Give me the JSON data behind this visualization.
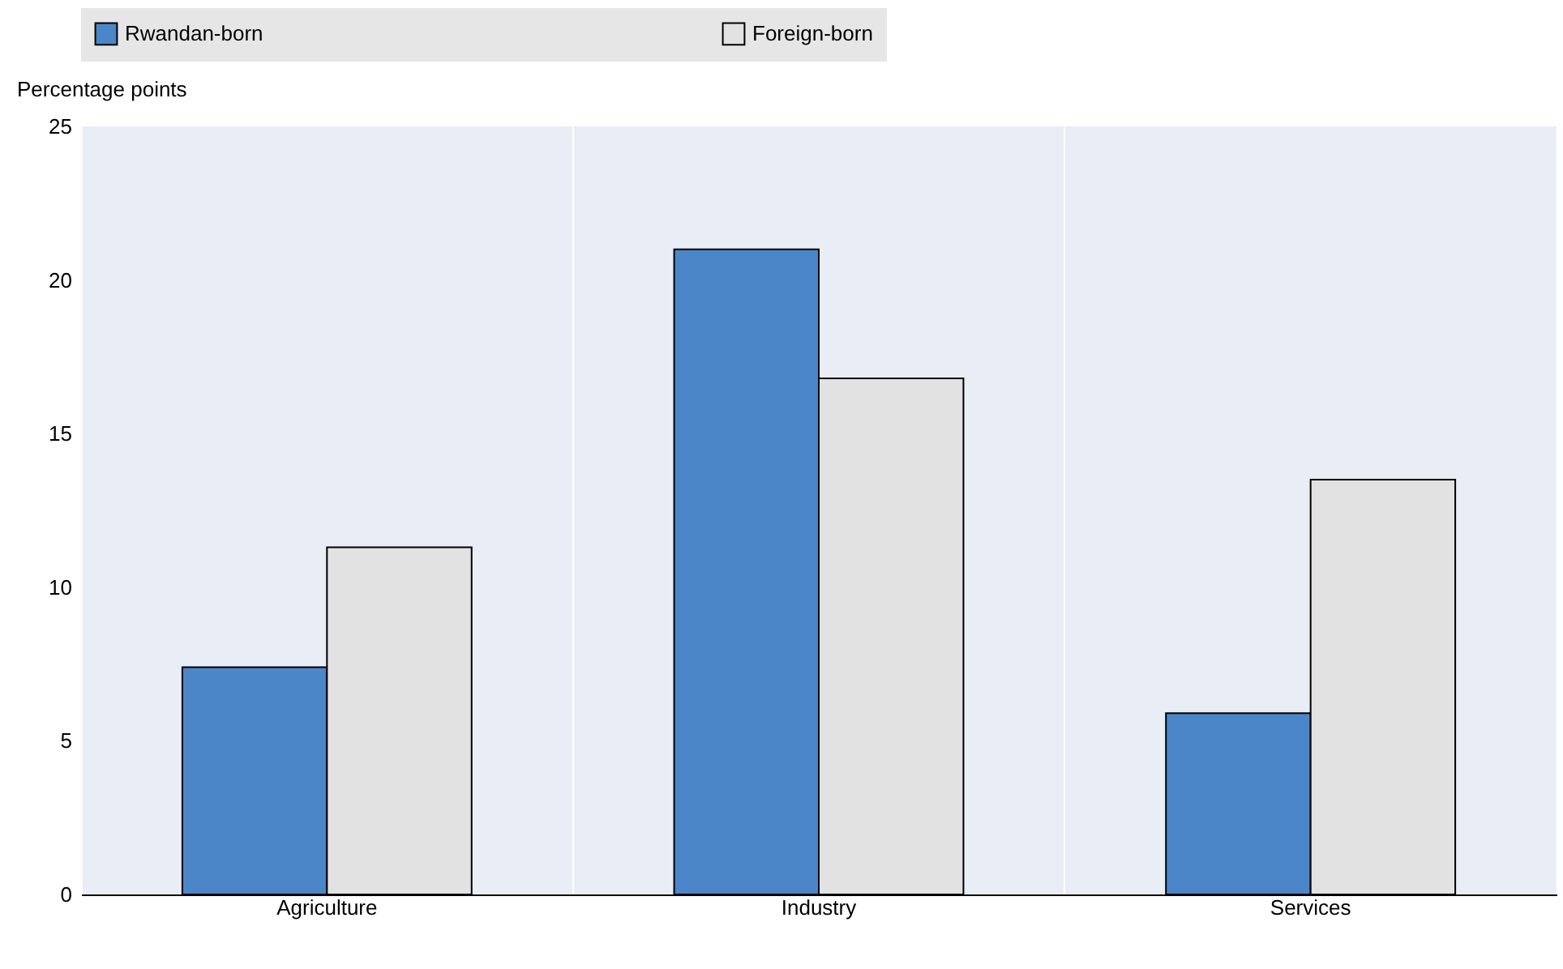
{
  "chart_data": {
    "type": "bar",
    "ylabel": "Percentage points",
    "categories": [
      "Agriculture",
      "Industry",
      "Services"
    ],
    "series": [
      {
        "name": "Rwandan-born",
        "color": "#4a86c8",
        "values": [
          7.4,
          21.0,
          5.9
        ]
      },
      {
        "name": "Foreign-born",
        "color": "#e2e2e2",
        "values": [
          11.3,
          16.8,
          13.5
        ]
      }
    ],
    "ylim": [
      0,
      25
    ],
    "yticks": [
      0,
      5,
      10,
      15,
      20,
      25
    ],
    "grid": "x",
    "legend": "top"
  }
}
